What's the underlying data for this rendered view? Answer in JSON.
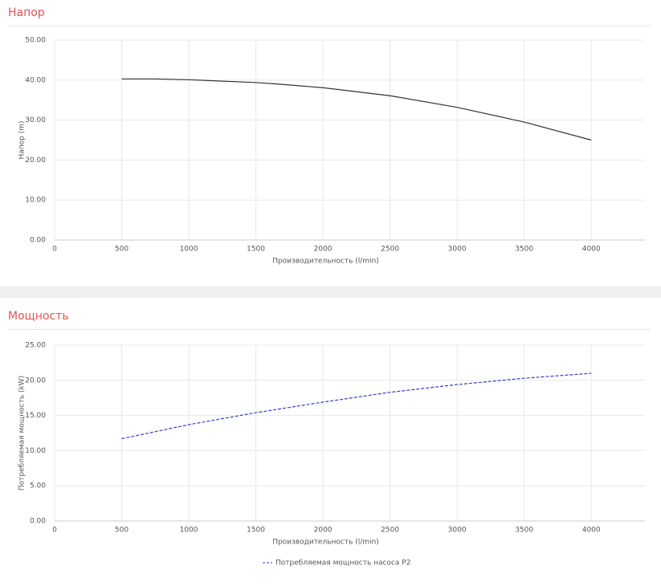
{
  "chart_data": [
    {
      "type": "line",
      "title": "Напор",
      "xlabel": "Производительность (l/min)",
      "ylabel": "Напор (m)",
      "x": [
        500,
        750,
        1000,
        1500,
        1667,
        2000,
        2400,
        2500,
        3000,
        3500,
        4000
      ],
      "series": [
        {
          "color": "#333333",
          "dash": false,
          "values": [
            40.3,
            40.3,
            40.1,
            39.4,
            39.0,
            38.1,
            36.5,
            36.1,
            33.2,
            29.5,
            25.0
          ]
        }
      ],
      "xlim": [
        0,
        4400
      ],
      "xticks": [
        0,
        500,
        1000,
        1500,
        2000,
        2500,
        3000,
        3500,
        4000
      ],
      "ylim": [
        0,
        50
      ],
      "yticks": [
        {
          "value": 0,
          "label": "0.00"
        },
        {
          "value": 10,
          "label": "10.00"
        },
        {
          "value": 20,
          "label": "20.00"
        },
        {
          "value": 30,
          "label": "30.00"
        },
        {
          "value": 40,
          "label": "40.00"
        },
        {
          "value": 50,
          "label": "50.00"
        }
      ],
      "grid": true,
      "legend": false
    },
    {
      "type": "line",
      "title": "Мощность",
      "xlabel": "Производительность (l/min)",
      "ylabel": "Потребляемая мощность (kW)",
      "x": [
        500,
        1000,
        1500,
        2000,
        2500,
        3000,
        3500,
        4000
      ],
      "series": [
        {
          "name": "Потребляемая мощность насоса P2",
          "color": "#3b3bd0",
          "dash": true,
          "values": [
            11.7,
            13.7,
            15.4,
            16.9,
            18.3,
            19.4,
            20.3,
            21.0
          ]
        }
      ],
      "xlim": [
        0,
        4400
      ],
      "xticks": [
        0,
        500,
        1000,
        1500,
        2000,
        2500,
        3000,
        3500,
        4000
      ],
      "ylim": [
        0,
        25
      ],
      "yticks": [
        {
          "value": 0,
          "label": "0.00"
        },
        {
          "value": 5,
          "label": "5.00"
        },
        {
          "value": 10,
          "label": "10.00"
        },
        {
          "value": 15,
          "label": "15.00"
        },
        {
          "value": 20,
          "label": "20.00"
        },
        {
          "value": 25,
          "label": "25.00"
        }
      ],
      "grid": true,
      "legend": true,
      "legend_position": "bottom"
    }
  ]
}
